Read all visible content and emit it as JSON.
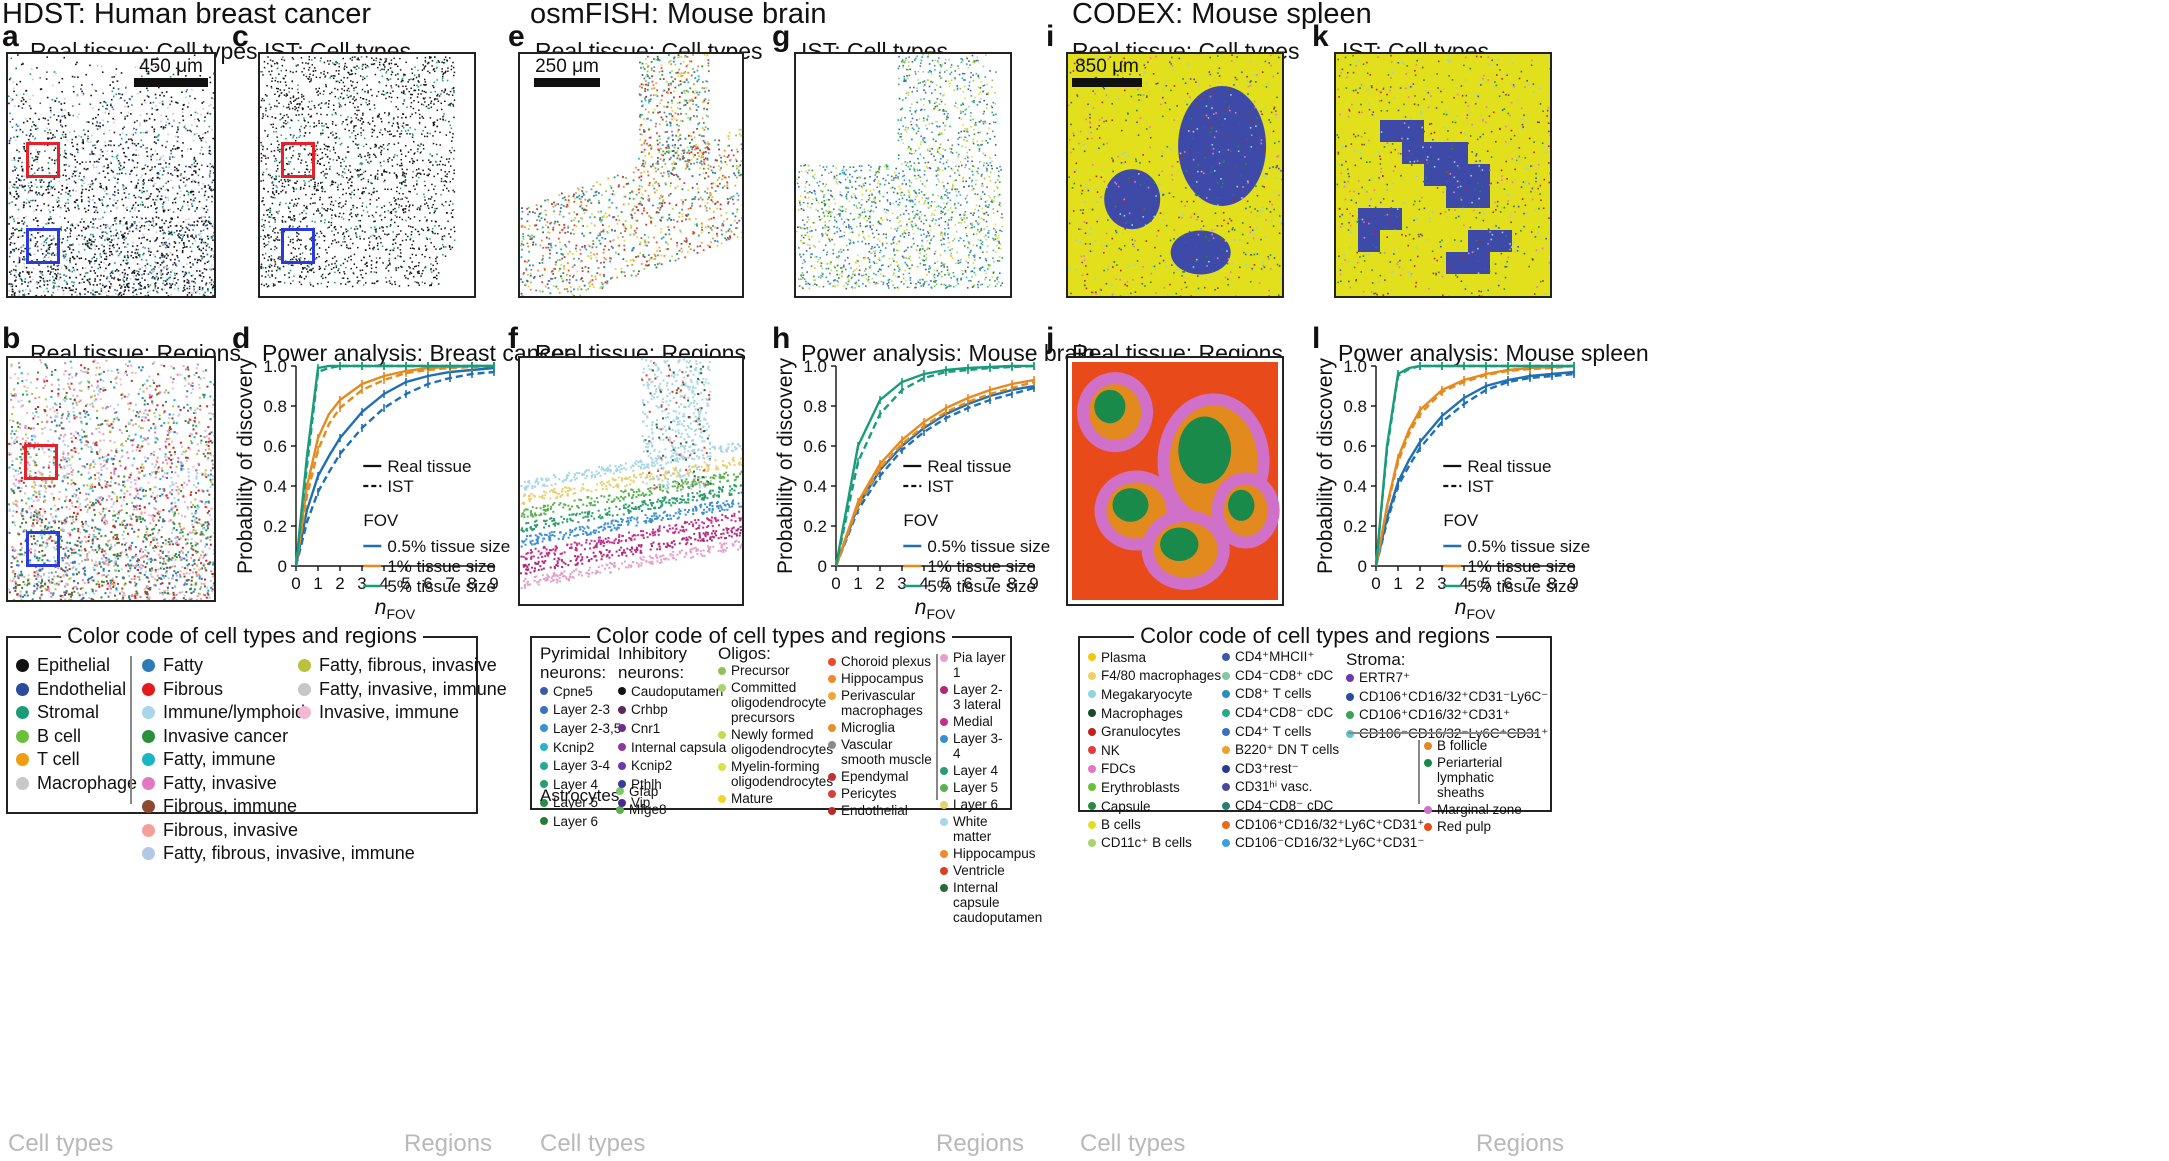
{
  "sections": [
    {
      "title": "HDST: Human breast cancer"
    },
    {
      "title": "osmFISH: Mouse brain"
    },
    {
      "title": "CODEX: Mouse spleen"
    }
  ],
  "panels": {
    "a": {
      "letter": "a",
      "title": "Real tissue: Cell types",
      "scale": "450 μm"
    },
    "b": {
      "letter": "b",
      "title": "Real tissue: Regions"
    },
    "c": {
      "letter": "c",
      "title": "IST: Cell types"
    },
    "d": {
      "letter": "d",
      "title": "Power analysis: Breast cancer"
    },
    "e": {
      "letter": "e",
      "title": "Real tissue: Cell types",
      "scale": "250 μm"
    },
    "f": {
      "letter": "f",
      "title": "Real tissue: Regions"
    },
    "g": {
      "letter": "g",
      "title": "IST: Cell types"
    },
    "h": {
      "letter": "h",
      "title": "Power analysis: Mouse brain"
    },
    "i": {
      "letter": "i",
      "title": "Real tissue: Cell types",
      "scale": "850 μm"
    },
    "j": {
      "letter": "j",
      "title": "Real tissue: Regions"
    },
    "k": {
      "letter": "k",
      "title": "IST: Cell types"
    },
    "l": {
      "letter": "l",
      "title": "Power analysis: Mouse spleen"
    }
  },
  "chart_data": [
    {
      "type": "line",
      "panel": "d",
      "title": "Power analysis: Breast cancer",
      "xlabel": "n_FOV",
      "ylabel": "Probability of discovery",
      "xlim": [
        0,
        9
      ],
      "ylim": [
        0,
        1
      ],
      "x": [
        0,
        0.5,
        1,
        1.5,
        2,
        3,
        4,
        5,
        6,
        7,
        8,
        9
      ],
      "xticks": [
        "0",
        "1",
        "2",
        "3",
        "4",
        "5",
        "6",
        "7",
        "8",
        "9"
      ],
      "yticks": [
        "0",
        "0.2",
        "0.4",
        "0.6",
        "0.8",
        "1.0"
      ],
      "series": [
        {
          "name": "0.5% tissue size",
          "style": "Real tissue",
          "color": "#1f6fb4",
          "values": [
            0,
            0.28,
            0.45,
            0.55,
            0.64,
            0.77,
            0.86,
            0.92,
            0.95,
            0.97,
            0.98,
            0.99
          ]
        },
        {
          "name": "0.5% tissue size",
          "style": "IST",
          "color": "#1f6fb4",
          "values": [
            0,
            0.22,
            0.37,
            0.47,
            0.56,
            0.69,
            0.79,
            0.86,
            0.91,
            0.94,
            0.96,
            0.97
          ]
        },
        {
          "name": "1% tissue size",
          "style": "Real tissue",
          "color": "#e58a1f",
          "values": [
            0,
            0.4,
            0.64,
            0.76,
            0.83,
            0.91,
            0.95,
            0.975,
            0.99,
            0.995,
            1.0,
            1.0
          ]
        },
        {
          "name": "1% tissue size",
          "style": "IST",
          "color": "#e58a1f",
          "values": [
            0,
            0.35,
            0.58,
            0.71,
            0.79,
            0.88,
            0.93,
            0.965,
            0.98,
            0.99,
            0.995,
            1.0
          ]
        },
        {
          "name": "5% tissue size",
          "style": "Real tissue",
          "color": "#1a9c7a",
          "values": [
            0,
            0.55,
            0.99,
            1.0,
            1.0,
            1.0,
            1.0,
            1.0,
            1.0,
            1.0,
            1.0,
            1.0
          ]
        },
        {
          "name": "5% tissue size",
          "style": "IST",
          "color": "#1a9c7a",
          "values": [
            0,
            0.5,
            0.97,
            0.99,
            1.0,
            1.0,
            1.0,
            1.0,
            1.0,
            1.0,
            1.0,
            1.0
          ]
        }
      ],
      "legend": {
        "real": "Real tissue",
        "ist": "IST",
        "fov_header": "FOV",
        "entries": [
          "0.5% tissue size",
          "1% tissue size",
          "5% tissue size"
        ]
      }
    },
    {
      "type": "line",
      "panel": "h",
      "title": "Power analysis: Mouse brain",
      "xlabel": "n_FOV",
      "ylabel": "Probability of discovery",
      "xlim": [
        0,
        9
      ],
      "ylim": [
        0,
        1
      ],
      "x": [
        0,
        1,
        2,
        3,
        4,
        5,
        6,
        7,
        8,
        9
      ],
      "xticks": [
        "0",
        "1",
        "2",
        "3",
        "4",
        "5",
        "6",
        "7",
        "8",
        "9"
      ],
      "yticks": [
        "0",
        "0.2",
        "0.4",
        "0.6",
        "0.8",
        "1.0"
      ],
      "series": [
        {
          "name": "0.5% tissue size",
          "style": "Real tissue",
          "color": "#1f6fb4",
          "values": [
            0,
            0.3,
            0.48,
            0.6,
            0.69,
            0.76,
            0.81,
            0.85,
            0.88,
            0.9
          ]
        },
        {
          "name": "0.5% tissue size",
          "style": "IST",
          "color": "#1f6fb4",
          "values": [
            0,
            0.28,
            0.45,
            0.58,
            0.67,
            0.74,
            0.79,
            0.83,
            0.86,
            0.89
          ]
        },
        {
          "name": "1% tissue size",
          "style": "Real tissue",
          "color": "#e58a1f",
          "values": [
            0,
            0.32,
            0.51,
            0.63,
            0.72,
            0.79,
            0.84,
            0.88,
            0.91,
            0.93
          ]
        },
        {
          "name": "1% tissue size",
          "style": "IST",
          "color": "#e58a1f",
          "values": [
            0,
            0.3,
            0.49,
            0.61,
            0.7,
            0.77,
            0.82,
            0.86,
            0.89,
            0.92
          ]
        },
        {
          "name": "5% tissue size",
          "style": "Real tissue",
          "color": "#1a9c7a",
          "values": [
            0,
            0.6,
            0.83,
            0.92,
            0.96,
            0.98,
            0.99,
            0.995,
            1.0,
            1.0
          ]
        },
        {
          "name": "5% tissue size",
          "style": "IST",
          "color": "#1a9c7a",
          "values": [
            0,
            0.52,
            0.76,
            0.88,
            0.94,
            0.97,
            0.98,
            0.99,
            0.995,
            1.0
          ]
        }
      ],
      "legend": {
        "real": "Real tissue",
        "ist": "IST",
        "fov_header": "FOV",
        "entries": [
          "0.5% tissue size",
          "1% tissue size",
          "5% tissue size"
        ]
      }
    },
    {
      "type": "line",
      "panel": "l",
      "title": "Power analysis: Mouse spleen",
      "xlabel": "n_FOV",
      "ylabel": "Probability of discovery",
      "xlim": [
        0,
        9
      ],
      "ylim": [
        0,
        1
      ],
      "x": [
        0,
        0.5,
        1,
        1.5,
        2,
        3,
        4,
        5,
        6,
        7,
        8,
        9
      ],
      "xticks": [
        "0",
        "1",
        "2",
        "3",
        "4",
        "5",
        "6",
        "7",
        "8",
        "9"
      ],
      "yticks": [
        "0",
        "0.2",
        "0.4",
        "0.6",
        "0.8",
        "1.0"
      ],
      "series": [
        {
          "name": "0.5% tissue size",
          "style": "Real tissue",
          "color": "#1f6fb4",
          "values": [
            0,
            0.24,
            0.42,
            0.53,
            0.62,
            0.75,
            0.84,
            0.9,
            0.93,
            0.95,
            0.96,
            0.97
          ]
        },
        {
          "name": "0.5% tissue size",
          "style": "IST",
          "color": "#1f6fb4",
          "values": [
            0,
            0.22,
            0.4,
            0.5,
            0.59,
            0.72,
            0.81,
            0.88,
            0.92,
            0.94,
            0.95,
            0.96
          ]
        },
        {
          "name": "1% tissue size",
          "style": "Real tissue",
          "color": "#e58a1f",
          "values": [
            0,
            0.3,
            0.54,
            0.68,
            0.78,
            0.88,
            0.93,
            0.96,
            0.98,
            0.99,
            0.995,
            1.0
          ]
        },
        {
          "name": "1% tissue size",
          "style": "IST",
          "color": "#e58a1f",
          "values": [
            0,
            0.29,
            0.52,
            0.66,
            0.76,
            0.87,
            0.92,
            0.955,
            0.975,
            0.985,
            0.99,
            1.0
          ]
        },
        {
          "name": "5% tissue size",
          "style": "Real tissue",
          "color": "#1a9c7a",
          "values": [
            0,
            0.6,
            0.96,
            0.99,
            1.0,
            1.0,
            1.0,
            1.0,
            1.0,
            1.0,
            1.0,
            1.0
          ]
        },
        {
          "name": "5% tissue size",
          "style": "IST",
          "color": "#1a9c7a",
          "values": [
            0,
            0.58,
            0.95,
            0.985,
            1.0,
            1.0,
            1.0,
            1.0,
            1.0,
            1.0,
            1.0,
            1.0
          ]
        }
      ],
      "legend": {
        "real": "Real tissue",
        "ist": "IST",
        "fov_header": "FOV",
        "entries": [
          "0.5% tissue size",
          "1% tissue size",
          "5% tissue size"
        ]
      }
    }
  ],
  "legend1": {
    "title": "Color code of cell types and regions",
    "left_label": "Cell types",
    "right_label": "Regions",
    "cell_types": [
      {
        "label": "Epithelial",
        "color": "#111111"
      },
      {
        "label": "Endothelial",
        "color": "#2c4a9e"
      },
      {
        "label": "Stromal",
        "color": "#1a9c7a"
      },
      {
        "label": "B cell",
        "color": "#6cbf3c"
      },
      {
        "label": "T cell",
        "color": "#f39c12"
      },
      {
        "label": "Macrophage",
        "color": "#c8c8c8"
      }
    ],
    "regions_a": [
      {
        "label": "Fatty",
        "color": "#2e79b8"
      },
      {
        "label": "Fibrous",
        "color": "#e31a1c"
      },
      {
        "label": "Immune/lymphoid",
        "color": "#a6d6e8"
      },
      {
        "label": "Invasive cancer",
        "color": "#2c8f3c"
      },
      {
        "label": "Fatty, immune",
        "color": "#18b5c4"
      },
      {
        "label": "Fatty, invasive",
        "color": "#e377c2"
      },
      {
        "label": "Fibrous, immune",
        "color": "#8c4a2f"
      },
      {
        "label": "Fibrous, invasive",
        "color": "#f4a09a"
      },
      {
        "label": "Fatty, fibrous, invasive, immune",
        "color": "#b5c7e6"
      }
    ],
    "regions_b": [
      {
        "label": "Fatty, fibrous, invasive",
        "color": "#b8c23a"
      },
      {
        "label": "Fatty, invasive, immune",
        "color": "#c7c7c7"
      },
      {
        "label": "Invasive, immune",
        "color": "#f7b6d2"
      }
    ]
  },
  "legend2": {
    "title": "Color code of cell types and regions",
    "left_label": "Cell types",
    "right_label": "Regions",
    "pyramidal": {
      "header": "Pyrimidal neurons:",
      "items": [
        {
          "label": "Cpne5",
          "color": "#3d5ca8"
        },
        {
          "label": "Layer 2-3",
          "color": "#3a73b8"
        },
        {
          "label": "Layer 2-3,5",
          "color": "#3b8fd0"
        },
        {
          "label": "Kcnip2",
          "color": "#2bb3c6"
        },
        {
          "label": "Layer 3-4",
          "color": "#23a89a"
        },
        {
          "label": "Layer 4",
          "color": "#2a9d6a"
        },
        {
          "label": "Layer 5",
          "color": "#2d8a4a"
        },
        {
          "label": "Layer 6",
          "color": "#2a7a3a"
        }
      ]
    },
    "astrocytes": {
      "header": "Astrocytes:",
      "items": [
        {
          "label": "Gfap",
          "color": "#7bc96f"
        },
        {
          "label": "Mfge8",
          "color": "#5ab04f"
        }
      ]
    },
    "inhibitory": {
      "header": "Inhibitory neurons:",
      "items": [
        {
          "label": "Caudoputamen",
          "color": "#111111"
        },
        {
          "label": "Crhbp",
          "color": "#5a2a5a"
        },
        {
          "label": "Cnr1",
          "color": "#6b2f8a"
        },
        {
          "label": "Internal capsula",
          "color": "#8a3a9a"
        },
        {
          "label": "Kcnip2",
          "color": "#6a3aa8"
        },
        {
          "label": "Pthlh",
          "color": "#3a3aa0"
        },
        {
          "label": "Vip",
          "color": "#4a2a90"
        }
      ]
    },
    "oligos": {
      "header": "Oligos:",
      "items": [
        {
          "label": "Precursor",
          "color": "#8fc35a"
        },
        {
          "label": "Committed oligodendrocyte precursors",
          "color": "#a8d46a"
        },
        {
          "label": "Newly formed oligodendrocytes",
          "color": "#c3dc50"
        },
        {
          "label": "Myelin-forming oligodendrocytes",
          "color": "#d8e04a"
        },
        {
          "label": "Mature",
          "color": "#f1d42a"
        }
      ]
    },
    "other": [
      {
        "label": "Choroid plexus",
        "color": "#e84a2a"
      },
      {
        "label": "Hippocampus",
        "color": "#f08a2a"
      },
      {
        "label": "Perivascular macrophages",
        "color": "#f0a63a"
      },
      {
        "label": "Microglia",
        "color": "#e8902a"
      },
      {
        "label": "Vascular smooth muscle",
        "color": "#8a8a8a"
      },
      {
        "label": "Ependymal",
        "color": "#c03030"
      },
      {
        "label": "Pericytes",
        "color": "#d84040"
      },
      {
        "label": "Endothelial",
        "color": "#c02828"
      }
    ],
    "regions": [
      {
        "label": "Pia layer 1",
        "color": "#e3a0c8"
      },
      {
        "label": "Layer 2-3 lateral",
        "color": "#b0287a"
      },
      {
        "label": "Medial",
        "color": "#c0308a"
      },
      {
        "label": "Layer 3-4",
        "color": "#3a8fd0"
      },
      {
        "label": "Layer 4",
        "color": "#2a9d6a"
      },
      {
        "label": "Layer 5",
        "color": "#5ab04f"
      },
      {
        "label": "Layer 6",
        "color": "#e8d070"
      },
      {
        "label": "White matter",
        "color": "#a6d6e8"
      },
      {
        "label": "Hippocampus",
        "color": "#f08a2a"
      },
      {
        "label": "Ventricle",
        "color": "#d84020"
      },
      {
        "label": "Internal capsule caudoputamen",
        "color": "#2a6a3a"
      }
    ]
  },
  "legend3": {
    "title": "Color code of cell types and regions",
    "left_label": "Cell types",
    "right_label": "Regions",
    "col1": [
      {
        "label": "Plasma",
        "color": "#f2c80f"
      },
      {
        "label": "F4/80 macrophages",
        "color": "#f0d060"
      },
      {
        "label": "Megakaryocyte",
        "color": "#8fd4e0"
      },
      {
        "label": "Macrophages",
        "color": "#1a4a2a"
      },
      {
        "label": "Granulocytes",
        "color": "#c02020"
      },
      {
        "label": "NK",
        "color": "#e83a3a"
      },
      {
        "label": "FDCs",
        "color": "#e377c2"
      },
      {
        "label": "Erythroblasts",
        "color": "#6cbf3c"
      },
      {
        "label": "Capsule",
        "color": "#2a8a3a"
      },
      {
        "label": "B cells",
        "color": "#e0e020"
      },
      {
        "label": "CD11c⁺ B cells",
        "color": "#a8d46a"
      }
    ],
    "col2": [
      {
        "label": "CD4⁺MHCII⁺",
        "color": "#3a5aa8"
      },
      {
        "label": "CD4⁻CD8⁺ cDC",
        "color": "#7fc8a0"
      },
      {
        "label": "CD8⁺ T cells",
        "color": "#2a8fb8"
      },
      {
        "label": "CD4⁺CD8⁻ cDC",
        "color": "#2aa88a"
      },
      {
        "label": "CD4⁺ T cells",
        "color": "#3a70c0"
      },
      {
        "label": "B220⁺ DN T cells",
        "color": "#f0a030"
      },
      {
        "label": "CD3⁺rest⁻",
        "color": "#2a3a8a"
      },
      {
        "label": "CD31ʰⁱ vasc.",
        "color": "#4a4a9a"
      },
      {
        "label": "CD4⁻CD8⁻ cDC",
        "color": "#2a7a7a"
      },
      {
        "label": "CD106⁺CD16/32⁺Ly6C⁺CD31⁺",
        "color": "#e86a1a"
      },
      {
        "label": "CD106⁻CD16/32⁺Ly6C⁺CD31⁻",
        "color": "#3aa0e0"
      }
    ],
    "stroma": {
      "header": "Stroma:",
      "items": [
        {
          "label": "ERTR7⁺",
          "color": "#6a3aa8"
        },
        {
          "label": "CD106⁺CD16/32⁺CD31⁻Ly6C⁻",
          "color": "#2a4a9a"
        },
        {
          "label": "CD106⁺CD16/32⁺CD31⁺",
          "color": "#3aa05a"
        },
        {
          "label": "CD106⁻CD16/32⁻Ly6C⁺CD31⁺",
          "color": "#5ac8d0"
        }
      ]
    },
    "regions": [
      {
        "label": "B follicle",
        "color": "#e38a1f"
      },
      {
        "label": "Periarterial lymphatic sheaths",
        "color": "#1a8a4a"
      },
      {
        "label": "Marginal zone",
        "color": "#d070c8"
      },
      {
        "label": "Red pulp",
        "color": "#e84a1a"
      }
    ]
  }
}
